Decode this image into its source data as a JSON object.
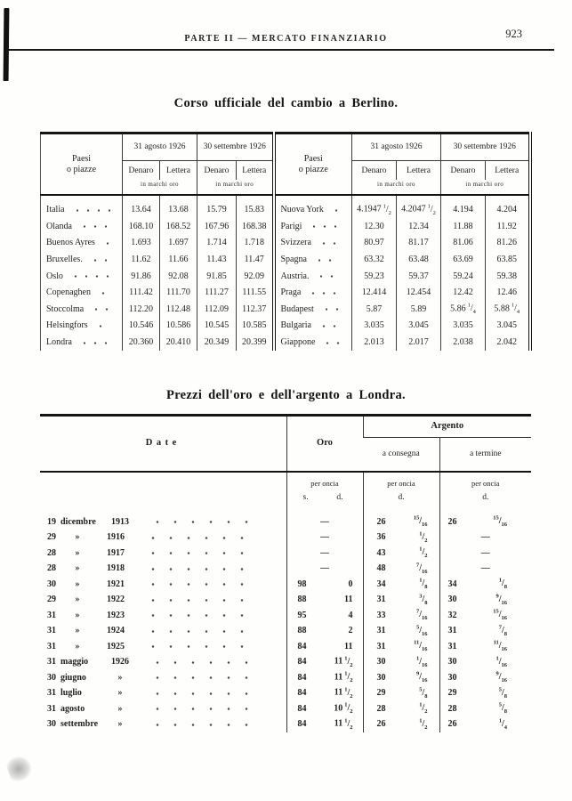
{
  "page": {
    "running_header": "PARTE II — MERCATO FINANZIARIO",
    "page_number": "923"
  },
  "colors": {
    "ink": "#1e1e1e",
    "paper": "#fefefd"
  },
  "berlin_table": {
    "title": "Corso ufficiale del cambio a Berlino.",
    "headers": {
      "paesi_line1": "Paesi",
      "paesi_line2": "o piazze",
      "date_col1": "31 agosto 1926",
      "date_col2": "30 settembre 1926",
      "denaro": "Denaro",
      "lettera": "Lettera",
      "unit": "in marchi oro"
    },
    "left_rows": [
      {
        "name": "Italia",
        "v": [
          "13.64",
          "13.68",
          "15.79",
          "15.83"
        ]
      },
      {
        "name": "Olanda",
        "v": [
          "168.10",
          "168.52",
          "167.96",
          "168.38"
        ]
      },
      {
        "name": "Buenos Ayres",
        "v": [
          "1.693",
          "1.697",
          "1.714",
          "1.718"
        ]
      },
      {
        "name": "Bruxelles.",
        "v": [
          "11.62",
          "11.66",
          "11.43",
          "11.47"
        ]
      },
      {
        "name": "Oslo",
        "v": [
          "91.86",
          "92.08",
          "91.85",
          "92.09"
        ]
      },
      {
        "name": "Copenaghen",
        "v": [
          "111.42",
          "111.70",
          "111.27",
          "111.55"
        ]
      },
      {
        "name": "Stoccolma",
        "v": [
          "112.20",
          "112.48",
          "112.09",
          "112.37"
        ]
      },
      {
        "name": "Helsingfors",
        "v": [
          "10.546",
          "10.586",
          "10.545",
          "10.585"
        ]
      },
      {
        "name": "Londra",
        "v": [
          "20.360",
          "20.410",
          "20.349",
          "20.399"
        ]
      }
    ],
    "right_rows": [
      {
        "name": "Nuova York",
        "v": [
          "4.1947 1/2",
          "4.2047 1/2",
          "4.194",
          "4.204"
        ]
      },
      {
        "name": "Parigi",
        "v": [
          "12.30",
          "12.34",
          "11.88",
          "11.92"
        ]
      },
      {
        "name": "Svizzera",
        "v": [
          "80.97",
          "81.17",
          "81.06",
          "81.26"
        ]
      },
      {
        "name": "Spagna",
        "v": [
          "63.32",
          "63.48",
          "63.69",
          "63.85"
        ]
      },
      {
        "name": "Austria.",
        "v": [
          "59.23",
          "59.37",
          "59.24",
          "59.38"
        ]
      },
      {
        "name": "Praga",
        "v": [
          "12.414",
          "12.454",
          "12.42",
          "12.46"
        ]
      },
      {
        "name": "Budapest",
        "v": [
          "5.87",
          "5.89",
          "5.86 1/4",
          "5.88 1/4"
        ]
      },
      {
        "name": "Bulgaria",
        "v": [
          "3.035",
          "3.045",
          "3.035",
          "3.045"
        ]
      },
      {
        "name": "Giappone",
        "v": [
          "2.013",
          "2.017",
          "2.038",
          "2.042"
        ]
      }
    ]
  },
  "london_table": {
    "title": "Prezzi dell'oro e dell'argento a Londra.",
    "headers": {
      "date": "Date",
      "oro": "Oro",
      "argento": "Argento",
      "consegna": "a consegna",
      "termine": "a termine",
      "per_oncia": "per oncia",
      "s_abbr": "s.",
      "d_abbr": "d."
    },
    "rows": [
      {
        "day": "19",
        "month": "dicembre",
        "year": "1913",
        "oro_s": "—",
        "oro_d": "",
        "cons_w": "26",
        "cons_f": "15/16",
        "term_w": "26",
        "term_f": "15/16"
      },
      {
        "day": "29",
        "month": "»",
        "year": "1916",
        "oro_s": "—",
        "oro_d": "",
        "cons_w": "36",
        "cons_f": "1/2",
        "term_w": "—",
        "term_f": ""
      },
      {
        "day": "28",
        "month": "»",
        "year": "1917",
        "oro_s": "—",
        "oro_d": "",
        "cons_w": "43",
        "cons_f": "1/2",
        "term_w": "—",
        "term_f": ""
      },
      {
        "day": "28",
        "month": "»",
        "year": "1918",
        "oro_s": "—",
        "oro_d": "",
        "cons_w": "48",
        "cons_f": "7/16",
        "term_w": "—",
        "term_f": ""
      },
      {
        "day": "30",
        "month": "»",
        "year": "1921",
        "oro_s": "98",
        "oro_d": "0",
        "cons_w": "34",
        "cons_f": "1/8",
        "term_w": "34",
        "term_f": "1/8"
      },
      {
        "day": "29",
        "month": "»",
        "year": "1922",
        "oro_s": "88",
        "oro_d": "11",
        "cons_w": "31",
        "cons_f": "3/8",
        "term_w": "30",
        "term_f": "9/16"
      },
      {
        "day": "31",
        "month": "»",
        "year": "1923",
        "oro_s": "95",
        "oro_d": "4",
        "cons_w": "33",
        "cons_f": "7/16",
        "term_w": "32",
        "term_f": "15/16"
      },
      {
        "day": "31",
        "month": "»",
        "year": "1924",
        "oro_s": "88",
        "oro_d": "2",
        "cons_w": "31",
        "cons_f": "5/16",
        "term_w": "31",
        "term_f": "7/8"
      },
      {
        "day": "31",
        "month": "»",
        "year": "1925",
        "oro_s": "84",
        "oro_d": "11",
        "cons_w": "31",
        "cons_f": "11/16",
        "term_w": "31",
        "term_f": "11/16"
      },
      {
        "day": "31",
        "month": "maggio",
        "year": "1926",
        "oro_s": "84",
        "oro_d": "11 1/2",
        "cons_w": "30",
        "cons_f": "1/16",
        "term_w": "30",
        "term_f": "1/16"
      },
      {
        "day": "30",
        "month": "giugno",
        "year": "»",
        "oro_s": "84",
        "oro_d": "11 1/2",
        "cons_w": "30",
        "cons_f": "9/16",
        "term_w": "30",
        "term_f": "9/16"
      },
      {
        "day": "31",
        "month": "luglio",
        "year": "»",
        "oro_s": "84",
        "oro_d": "11 1/2",
        "cons_w": "29",
        "cons_f": "5/8",
        "term_w": "29",
        "term_f": "5/8"
      },
      {
        "day": "31",
        "month": "agosto",
        "year": "»",
        "oro_s": "84",
        "oro_d": "10 1/2",
        "cons_w": "28",
        "cons_f": "1/2",
        "term_w": "28",
        "term_f": "5/8"
      },
      {
        "day": "30",
        "month": "settembre",
        "year": "»",
        "oro_s": "84",
        "oro_d": "11 1/2",
        "cons_w": "26",
        "cons_f": "1/2",
        "term_w": "26",
        "term_f": "1/4"
      }
    ]
  }
}
